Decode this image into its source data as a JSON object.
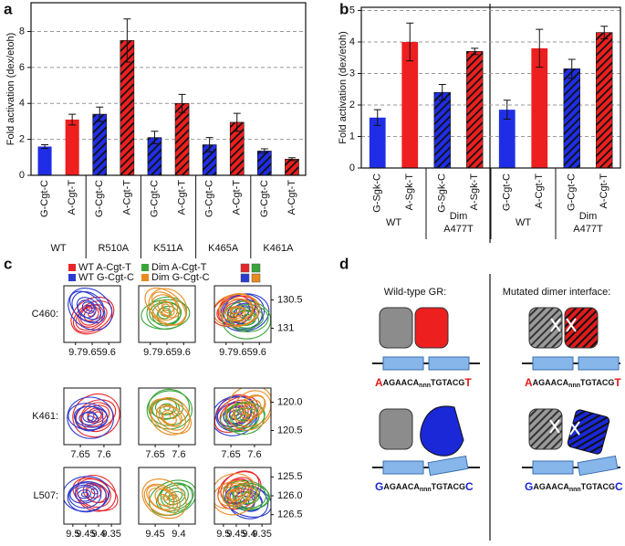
{
  "chart_data": [
    {
      "type": "bar",
      "panel_label": "a",
      "ylabel": "Fold activation (dex/etoh)",
      "categories": [
        "G-Cgt-C",
        "A-Cgt-T",
        "G-Cgt-C",
        "A-Cgt-T",
        "G-Cgt-C",
        "A-Cgt-T",
        "G-Cgt-C",
        "A-Cgt-T",
        "G-Cgt-C",
        "A-Cgt-T"
      ],
      "values": [
        1.6,
        3.1,
        3.4,
        7.5,
        2.1,
        4.0,
        1.7,
        2.95,
        1.35,
        0.9
      ],
      "errors": [
        0.1,
        0.3,
        0.4,
        1.2,
        0.35,
        0.5,
        0.4,
        0.5,
        0.12,
        0.08
      ],
      "colors": [
        "#1f2ee6",
        "#ee1f1f",
        "#1f2ee6",
        "#ee1f1f",
        "#1f2ee6",
        "#ee1f1f",
        "#1f2ee6",
        "#ee1f1f",
        "#1f2ee6",
        "#ee1f1f"
      ],
      "hatched": [
        false,
        false,
        true,
        true,
        true,
        true,
        true,
        true,
        true,
        true
      ],
      "groups": [
        [
          "WT"
        ],
        [
          "R510A"
        ],
        [
          "K511A"
        ],
        [
          "K465A"
        ],
        [
          "K461A"
        ]
      ],
      "ylim": [
        0,
        9.6
      ],
      "yticks": [
        0,
        2,
        4,
        6,
        8
      ],
      "grid": true
    },
    {
      "type": "bar",
      "panel_label": "b",
      "ylabel": "Fold activation (dex/etoh)",
      "categories": [
        "G-Sgk-C",
        "A-Sgk-T",
        "G-Sgk-C",
        "A-Sgk-T",
        "G-Cgt-C",
        "A-Cgt-T",
        "G-Cgt-C",
        "A-Cgt-T"
      ],
      "values": [
        1.6,
        4.0,
        2.4,
        3.7,
        1.85,
        3.8,
        3.15,
        4.3
      ],
      "errors": [
        0.25,
        0.6,
        0.25,
        0.1,
        0.3,
        0.6,
        0.3,
        0.2
      ],
      "colors": [
        "#1f2ee6",
        "#ee1f1f",
        "#1f2ee6",
        "#ee1f1f",
        "#1f2ee6",
        "#ee1f1f",
        "#1f2ee6",
        "#ee1f1f"
      ],
      "hatched": [
        false,
        false,
        true,
        true,
        false,
        false,
        true,
        true
      ],
      "groups": [
        [
          "WT"
        ],
        [
          "Dim",
          "A477T"
        ],
        [
          "WT"
        ],
        [
          "Dim",
          "A477T"
        ]
      ],
      "ylim": [
        0,
        5.1
      ],
      "yticks": [
        0,
        1,
        2,
        3,
        4,
        5
      ],
      "grid": true
    }
  ],
  "panel_c": {
    "panel_label": "c",
    "legend": [
      [
        {
          "text": "WT A-Cgt-T",
          "color": "#e8262a"
        },
        {
          "text": "WT G-Cgt-C",
          "color": "#2b3bd0"
        }
      ],
      [
        {
          "text": "Dim A-Cgt-T",
          "color": "#3aa53a"
        },
        {
          "text": "Dim G-Cgt-C",
          "color": "#e88a1f"
        }
      ]
    ],
    "rows": [
      {
        "label": "C460:",
        "xticks": [
          [
            "9.7",
            "9.65",
            "9.6"
          ],
          [
            "9.7",
            "9.65",
            "9.6"
          ],
          [
            "9.7",
            "9.65",
            "9.6"
          ]
        ],
        "yticks": [
          "130.5",
          "131"
        ]
      },
      {
        "label": "K461:",
        "xticks": [
          [
            "7.65",
            "7.6"
          ],
          [
            "7.65",
            "7.6"
          ],
          [
            "7.65",
            "7.6"
          ]
        ],
        "yticks": [
          "120.0",
          "120.5"
        ]
      },
      {
        "label": "L507:",
        "xticks": [
          [
            "9.5",
            "9.45",
            "9.4",
            "9.35"
          ],
          [
            "9.45",
            "9.4"
          ],
          [
            "9.5",
            "9.45",
            "9.4",
            "9.35"
          ]
        ],
        "yticks": [
          "125.5",
          "126.0",
          "126.5"
        ]
      }
    ]
  },
  "panel_d": {
    "panel_label": "d",
    "headings": [
      "Wild-type GR:",
      "Mutated dimer interface:"
    ],
    "sequences": [
      {
        "color": "#e01b1b",
        "parts": [
          "A",
          "AGAACA",
          "nnn",
          "TGTACG",
          "T"
        ]
      },
      {
        "color": "#1a28d8",
        "parts": [
          "G",
          "AGAACA",
          "nnn",
          "TGTACG",
          "C"
        ]
      },
      {
        "color": "#e01b1b",
        "parts": [
          "A",
          "AGAACA",
          "nnn",
          "TGTACG",
          "T"
        ]
      },
      {
        "color": "#1a28d8",
        "parts": [
          "G",
          "AGAACA",
          "nnn",
          "TGTACG",
          "C"
        ]
      }
    ]
  }
}
